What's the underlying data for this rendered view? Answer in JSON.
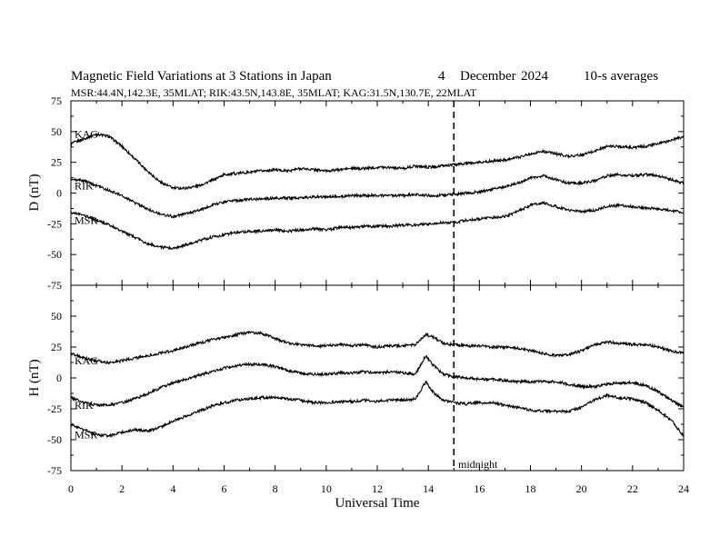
{
  "header": {
    "title": "Magnetic Field Variations at 3 Stations in Japan",
    "day": "4",
    "month": "December",
    "year": "2024",
    "averaging": "10-s averages",
    "stations_line": "MSR:44.4N,142.3E, 35MLAT;  RIK:43.5N,143.8E, 35MLAT;  KAG:31.5N,130.7E, 22MLAT"
  },
  "chart_data": [
    {
      "type": "line",
      "panel": "D",
      "ylabel": "D (nT)",
      "ylim": [
        -75,
        75
      ],
      "yticks": [
        "75",
        "50",
        "25",
        "0",
        "-25",
        "-50",
        "-75"
      ],
      "xlim": [
        0,
        24
      ],
      "series": [
        {
          "name": "KAG",
          "x": [
            0,
            0.5,
            1,
            1.5,
            2,
            2.5,
            3,
            3.5,
            4,
            4.5,
            5,
            5.5,
            6,
            6.5,
            7,
            7.5,
            8,
            8.5,
            9,
            9.5,
            10,
            10.5,
            11,
            11.5,
            12,
            12.5,
            13,
            13.5,
            14,
            14.5,
            15,
            15.5,
            16,
            16.5,
            17,
            17.5,
            18,
            18.5,
            19,
            19.5,
            20,
            20.5,
            21,
            21.5,
            22,
            22.5,
            23,
            23.5,
            24
          ],
          "values": [
            40,
            44,
            48,
            46,
            38,
            28,
            18,
            9,
            4,
            4,
            6,
            10,
            15,
            16,
            17,
            18,
            19,
            18,
            20,
            19,
            18,
            19,
            20,
            20,
            21,
            21,
            20,
            22,
            21,
            22,
            23,
            24,
            25,
            26,
            27,
            29,
            32,
            34,
            32,
            30,
            31,
            34,
            38,
            38,
            37,
            38,
            40,
            43,
            46
          ]
        },
        {
          "name": "RIK",
          "x": [
            0,
            0.5,
            1,
            1.5,
            2,
            2.5,
            3,
            3.5,
            4,
            4.5,
            5,
            5.5,
            6,
            6.5,
            7,
            7.5,
            8,
            8.5,
            9,
            9.5,
            10,
            10.5,
            11,
            11.5,
            12,
            12.5,
            13,
            13.5,
            14,
            14.5,
            15,
            15.5,
            16,
            16.5,
            17,
            17.5,
            18,
            18.5,
            19,
            19.5,
            20,
            20.5,
            21,
            21.5,
            22,
            22.5,
            23,
            23.5,
            24
          ],
          "values": [
            11,
            10,
            6,
            2,
            -2,
            -8,
            -13,
            -17,
            -19,
            -17,
            -14,
            -10,
            -7,
            -6,
            -5,
            -5,
            -4,
            -4,
            -4,
            -3,
            -3,
            -3,
            -2,
            -2,
            -2,
            -2,
            -2,
            -1,
            -2,
            -2,
            -1,
            0,
            1,
            3,
            5,
            8,
            12,
            14,
            11,
            8,
            8,
            10,
            14,
            15,
            14,
            15,
            14,
            11,
            8
          ]
        },
        {
          "name": "MSR",
          "x": [
            0,
            0.5,
            1,
            1.5,
            2,
            2.5,
            3,
            3.5,
            4,
            4.5,
            5,
            5.5,
            6,
            6.5,
            7,
            7.5,
            8,
            8.5,
            9,
            9.5,
            10,
            10.5,
            11,
            11.5,
            12,
            12.5,
            13,
            13.5,
            14,
            14.5,
            15,
            15.5,
            16,
            16.5,
            17,
            17.5,
            18,
            18.5,
            19,
            19.5,
            20,
            20.5,
            21,
            21.5,
            22,
            22.5,
            23,
            23.5,
            24
          ],
          "values": [
            -16,
            -18,
            -22,
            -26,
            -31,
            -36,
            -41,
            -44,
            -45,
            -42,
            -39,
            -36,
            -34,
            -32,
            -31,
            -31,
            -30,
            -31,
            -30,
            -29,
            -30,
            -28,
            -28,
            -27,
            -27,
            -27,
            -26,
            -26,
            -25,
            -24,
            -24,
            -22,
            -21,
            -20,
            -19,
            -15,
            -10,
            -8,
            -11,
            -14,
            -15,
            -14,
            -11,
            -10,
            -11,
            -12,
            -13,
            -14,
            -16
          ]
        }
      ]
    },
    {
      "type": "line",
      "panel": "H",
      "ylabel": "H (nT)",
      "ylim": [
        -75,
        75
      ],
      "yticks": [
        "75",
        "50",
        "25",
        "0",
        "-25",
        "-50",
        "-75"
      ],
      "xlim": [
        0,
        24
      ],
      "xticks": [
        "0",
        "2",
        "4",
        "6",
        "8",
        "10",
        "12",
        "14",
        "16",
        "18",
        "20",
        "22",
        "24"
      ],
      "xlabel": "Universal Time",
      "series": [
        {
          "name": "KAG",
          "x": [
            0,
            0.5,
            1,
            1.5,
            2,
            2.5,
            3,
            3.5,
            4,
            4.5,
            5,
            5.5,
            6,
            6.5,
            7,
            7.5,
            8,
            8.5,
            9,
            9.5,
            10,
            10.5,
            11,
            11.5,
            12,
            12.5,
            13,
            13.5,
            13.9,
            14.2,
            14.6,
            15,
            15.5,
            16,
            16.5,
            17,
            17.5,
            18,
            18.5,
            19,
            19.5,
            20,
            20.5,
            21,
            21.5,
            22,
            22.5,
            23,
            23.5,
            24
          ],
          "values": [
            20,
            16,
            14,
            12,
            14,
            16,
            18,
            20,
            22,
            25,
            28,
            31,
            33,
            35,
            37,
            36,
            32,
            28,
            27,
            26,
            26,
            27,
            26,
            27,
            25,
            26,
            26,
            27,
            35,
            33,
            28,
            27,
            26,
            26,
            25,
            25,
            24,
            22,
            20,
            18,
            19,
            22,
            27,
            29,
            28,
            27,
            27,
            25,
            22,
            20
          ]
        },
        {
          "name": "RIK",
          "x": [
            0,
            0.5,
            1,
            1.5,
            2,
            2.5,
            3,
            3.5,
            4,
            4.5,
            5,
            5.5,
            6,
            6.5,
            7,
            7.5,
            8,
            8.5,
            9,
            9.5,
            10,
            10.5,
            11,
            11.5,
            12,
            12.5,
            13,
            13.5,
            13.9,
            14.2,
            14.6,
            15,
            15.5,
            16,
            16.5,
            17,
            17.5,
            18,
            18.5,
            19,
            19.5,
            20,
            20.5,
            21,
            21.5,
            22,
            22.5,
            23,
            23.5,
            24
          ],
          "values": [
            -16,
            -20,
            -22,
            -22,
            -20,
            -17,
            -13,
            -8,
            -4,
            -1,
            2,
            5,
            8,
            10,
            11,
            11,
            9,
            6,
            4,
            3,
            3,
            4,
            4,
            5,
            4,
            5,
            4,
            3,
            18,
            10,
            3,
            1,
            0,
            -1,
            -1,
            -2,
            -3,
            -3,
            -3,
            -3,
            -5,
            -7,
            -7,
            -5,
            -4,
            -4,
            -6,
            -11,
            -18,
            -24
          ]
        },
        {
          "name": "MSR",
          "x": [
            0,
            0.5,
            1,
            1.5,
            2,
            2.5,
            3,
            3.5,
            4,
            4.5,
            5,
            5.5,
            6,
            6.5,
            7,
            7.5,
            8,
            8.5,
            9,
            9.5,
            10,
            10.5,
            11,
            11.5,
            12,
            12.5,
            13,
            13.5,
            13.9,
            14.2,
            14.6,
            15,
            15.5,
            16,
            16.5,
            17,
            17.5,
            18,
            18.5,
            19,
            19.5,
            20,
            20.5,
            21,
            21.5,
            22,
            22.5,
            23,
            23.5,
            24
          ],
          "values": [
            -38,
            -42,
            -46,
            -47,
            -44,
            -42,
            -43,
            -40,
            -35,
            -31,
            -27,
            -23,
            -20,
            -18,
            -17,
            -16,
            -16,
            -17,
            -18,
            -20,
            -20,
            -19,
            -19,
            -18,
            -19,
            -18,
            -18,
            -17,
            -3,
            -12,
            -18,
            -20,
            -21,
            -20,
            -20,
            -22,
            -24,
            -26,
            -27,
            -27,
            -27,
            -24,
            -18,
            -14,
            -16,
            -17,
            -20,
            -26,
            -34,
            -47
          ]
        }
      ]
    }
  ],
  "annotation": {
    "label": "midnight",
    "x": 15
  }
}
